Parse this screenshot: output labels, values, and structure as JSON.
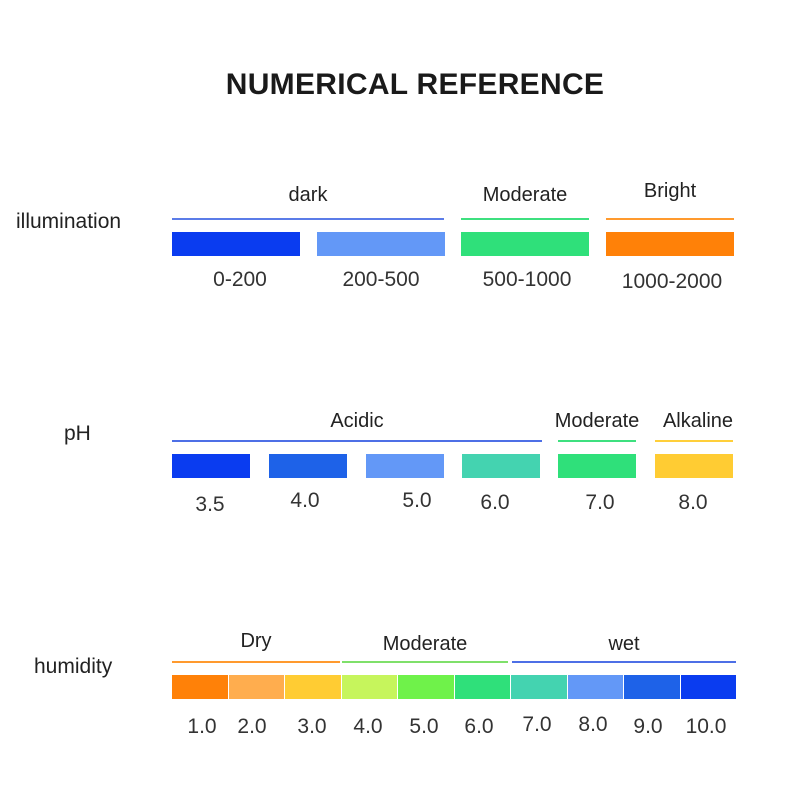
{
  "title": "NUMERICAL REFERENCE",
  "illumination": {
    "label": "illumination",
    "groups": [
      {
        "label": "dark",
        "color": "#5b7ce8"
      },
      {
        "label": "Moderate",
        "color": "#3ee07f"
      },
      {
        "label": "Bright",
        "color": "#ff9a2e"
      }
    ],
    "swatches": [
      {
        "value": "0-200",
        "color": "#0a3cf0"
      },
      {
        "value": "200-500",
        "color": "#6398f7"
      },
      {
        "value": "500-1000",
        "color": "#2fe07a"
      },
      {
        "value": "1000-2000",
        "color": "#ff8108"
      }
    ]
  },
  "ph": {
    "label": "pH",
    "groups": [
      {
        "label": "Acidic",
        "color": "#4d6fe6"
      },
      {
        "label": "Moderate",
        "color": "#3ee07f"
      },
      {
        "label": "Alkaline",
        "color": "#ffcf3a"
      }
    ],
    "swatches": [
      {
        "value": "3.5",
        "color": "#0a3cf0"
      },
      {
        "value": "4.0",
        "color": "#1e62e8"
      },
      {
        "value": "5.0",
        "color": "#6398f7"
      },
      {
        "value": "6.0",
        "color": "#44d3b0"
      },
      {
        "value": "7.0",
        "color": "#2fe07a"
      },
      {
        "value": "8.0",
        "color": "#ffcc33"
      }
    ]
  },
  "humidity": {
    "label": "humidity",
    "groups": [
      {
        "label": "Dry",
        "color": "#ff9a2e"
      },
      {
        "label": "Moderate",
        "color": "#7fe06a"
      },
      {
        "label": "wet",
        "color": "#4d6fe6"
      }
    ],
    "swatches": [
      {
        "value": "1.0",
        "color": "#ff8108"
      },
      {
        "value": "2.0",
        "color": "#ffad4e"
      },
      {
        "value": "3.0",
        "color": "#ffcc33"
      },
      {
        "value": "4.0",
        "color": "#c6f55c"
      },
      {
        "value": "5.0",
        "color": "#6ff24a"
      },
      {
        "value": "6.0",
        "color": "#2fe07a"
      },
      {
        "value": "7.0",
        "color": "#44d3b0"
      },
      {
        "value": "8.0",
        "color": "#6398f7"
      },
      {
        "value": "9.0",
        "color": "#1e62e8"
      },
      {
        "value": "10.0",
        "color": "#0a3cf0"
      }
    ]
  }
}
